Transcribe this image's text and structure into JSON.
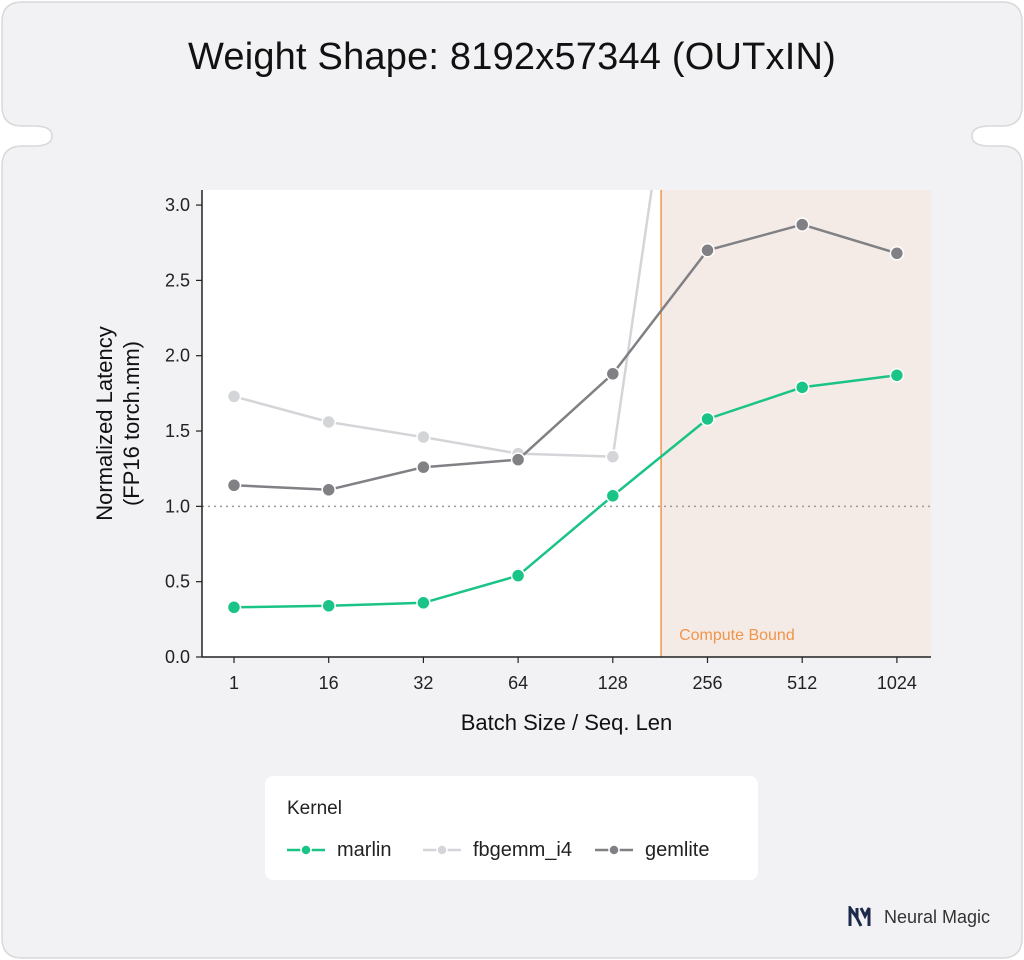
{
  "title": "Weight Shape: 8192x57344 (OUTxIN)",
  "brand": {
    "name": "Neural Magic",
    "logo_icon": "neural-magic-logo-icon"
  },
  "colors": {
    "marlin": "#1ac486",
    "fbgemm_i4": "#d4d5d9",
    "gemlite": "#808085",
    "compute_bound_line": "#f0954a",
    "compute_bound_fill": "#f4ebe7",
    "background_card": "#f2f2f4"
  },
  "chart_data": {
    "type": "line",
    "xlabel": "Batch Size / Seq. Len",
    "ylabel_line1": "Normalized Latency",
    "ylabel_line2": "(FP16 torch.mm)",
    "categories": [
      "1",
      "16",
      "32",
      "64",
      "128",
      "256",
      "512",
      "1024"
    ],
    "ylim": [
      0,
      3.1
    ],
    "yticks": [
      "0.0",
      "0.5",
      "1.0",
      "1.5",
      "2.0",
      "2.5",
      "3.0"
    ],
    "reference_line": 1.0,
    "compute_bound": {
      "label": "Compute Bound",
      "start_between": [
        "128",
        "256"
      ]
    },
    "legend_title": "Kernel",
    "legend_position": "bottom",
    "series": [
      {
        "name": "marlin",
        "values": [
          0.33,
          0.34,
          0.36,
          0.54,
          1.07,
          1.58,
          1.79,
          1.87
        ]
      },
      {
        "name": "fbgemm_i4",
        "values": [
          1.73,
          1.56,
          1.46,
          1.35,
          1.33,
          null,
          null,
          null
        ],
        "exits_above_after": "128"
      },
      {
        "name": "gemlite",
        "values": [
          1.14,
          1.11,
          1.26,
          1.31,
          1.88,
          2.7,
          2.87,
          2.68
        ]
      }
    ]
  }
}
